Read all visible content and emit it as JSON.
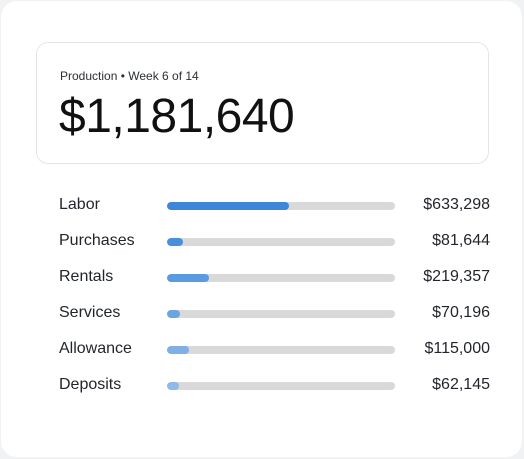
{
  "summary": {
    "caption": "Production • Week 6 of 14",
    "total": "$1,181,640"
  },
  "breakdown": [
    {
      "label": "Labor",
      "value": "$633,298",
      "fraction": 0.536,
      "color": "#3d86d9"
    },
    {
      "label": "Purchases",
      "value": "$81,644",
      "fraction": 0.069,
      "color": "#4a8fdc"
    },
    {
      "label": "Rentals",
      "value": "$219,357",
      "fraction": 0.186,
      "color": "#5a9ae0"
    },
    {
      "label": "Services",
      "value": "$70,196",
      "fraction": 0.059,
      "color": "#6ba4e2"
    },
    {
      "label": "Allowance",
      "value": "$115,000",
      "fraction": 0.097,
      "color": "#7eafe5"
    },
    {
      "label": "Deposits",
      "value": "$62,145",
      "fraction": 0.053,
      "color": "#8fb9e8"
    }
  ]
}
